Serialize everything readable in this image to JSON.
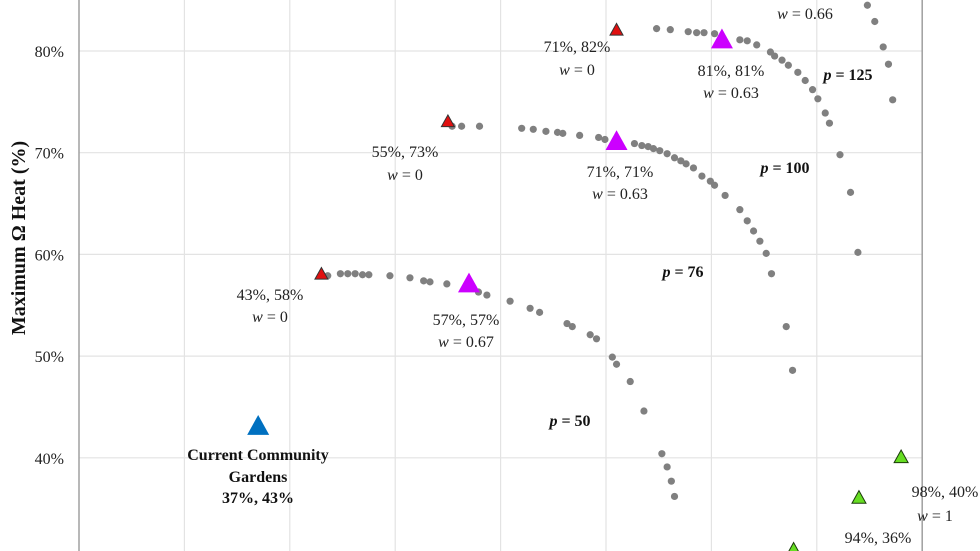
{
  "chart_data": {
    "type": "scatter",
    "title": "",
    "xlabel": "",
    "ylabel": "Maximum Ω Heat (%)",
    "xlim": [
      20,
      100
    ],
    "ylim": [
      30.9,
      85
    ],
    "grid": true,
    "y_ticks": [
      "40%",
      "50%",
      "60%",
      "70%",
      "80%"
    ],
    "y_tick_values": [
      40,
      50,
      60,
      70,
      80
    ],
    "x_grid_values": [
      30,
      40,
      50,
      60,
      70,
      80,
      90
    ],
    "colors": {
      "dots": "#808080",
      "w0": "#e01010",
      "wmid": "#cc00ff",
      "w1": "#66dd22",
      "current": "#0070c0",
      "grid": "#e3e3e3",
      "axis": "#a0a0a0"
    },
    "curves": [
      {
        "label": "p = 50",
        "points": [
          [
            43.6,
            57.9
          ],
          [
            44.8,
            58.1
          ],
          [
            45.5,
            58.1
          ],
          [
            46.2,
            58.1
          ],
          [
            46.9,
            58.0
          ],
          [
            47.5,
            58.0
          ],
          [
            49.5,
            57.9
          ],
          [
            51.4,
            57.7
          ],
          [
            52.7,
            57.4
          ],
          [
            53.3,
            57.3
          ],
          [
            54.9,
            57.1
          ],
          [
            57.9,
            56.3
          ],
          [
            58.7,
            56.0
          ],
          [
            60.9,
            55.4
          ],
          [
            62.8,
            54.7
          ],
          [
            63.7,
            54.3
          ],
          [
            66.3,
            53.2
          ],
          [
            66.8,
            52.9
          ],
          [
            68.5,
            52.1
          ],
          [
            69.1,
            51.7
          ],
          [
            70.6,
            49.9
          ],
          [
            71.0,
            49.2
          ],
          [
            72.3,
            47.5
          ],
          [
            73.6,
            44.6
          ],
          [
            75.3,
            40.4
          ],
          [
            75.8,
            39.1
          ],
          [
            76.2,
            37.7
          ],
          [
            76.5,
            36.2
          ]
        ]
      },
      {
        "label": "p = 76",
        "points": [
          [
            55.4,
            72.6
          ],
          [
            56.3,
            72.6
          ],
          [
            58.0,
            72.6
          ],
          [
            62.0,
            72.4
          ],
          [
            63.1,
            72.3
          ],
          [
            64.3,
            72.1
          ],
          [
            65.4,
            72.0
          ],
          [
            65.9,
            71.9
          ],
          [
            67.5,
            71.7
          ],
          [
            69.3,
            71.5
          ],
          [
            69.9,
            71.3
          ],
          [
            72.7,
            70.9
          ],
          [
            73.4,
            70.7
          ],
          [
            74.0,
            70.6
          ],
          [
            74.5,
            70.4
          ],
          [
            75.1,
            70.2
          ],
          [
            75.8,
            69.9
          ],
          [
            76.5,
            69.5
          ],
          [
            77.1,
            69.2
          ],
          [
            77.6,
            68.9
          ],
          [
            78.3,
            68.5
          ],
          [
            79.1,
            67.7
          ],
          [
            79.9,
            67.2
          ],
          [
            80.3,
            66.8
          ],
          [
            81.3,
            65.8
          ],
          [
            82.7,
            64.4
          ],
          [
            83.4,
            63.3
          ],
          [
            84.0,
            62.3
          ],
          [
            84.6,
            61.3
          ],
          [
            85.2,
            60.1
          ],
          [
            85.7,
            58.1
          ],
          [
            87.1,
            52.9
          ],
          [
            87.7,
            48.6
          ]
        ]
      },
      {
        "label": "p = 100",
        "points": [
          [
            74.8,
            82.2
          ],
          [
            76.1,
            82.1
          ],
          [
            77.8,
            81.9
          ],
          [
            78.6,
            81.8
          ],
          [
            79.3,
            81.8
          ],
          [
            80.3,
            81.7
          ],
          [
            82.7,
            81.1
          ],
          [
            83.4,
            81.0
          ],
          [
            84.3,
            80.6
          ],
          [
            85.6,
            79.9
          ],
          [
            86.0,
            79.5
          ],
          [
            86.7,
            79.1
          ],
          [
            87.3,
            78.6
          ],
          [
            88.2,
            77.9
          ],
          [
            88.9,
            77.1
          ],
          [
            89.6,
            76.2
          ],
          [
            90.1,
            75.3
          ],
          [
            90.8,
            73.9
          ],
          [
            91.2,
            72.9
          ],
          [
            92.2,
            69.8
          ],
          [
            93.2,
            66.1
          ],
          [
            93.9,
            60.2
          ]
        ]
      },
      {
        "label": "p = 125",
        "points": [
          [
            94.8,
            84.5
          ],
          [
            95.5,
            82.9
          ],
          [
            96.3,
            80.4
          ],
          [
            96.8,
            78.7
          ],
          [
            97.2,
            75.2
          ]
        ]
      }
    ],
    "markers": [
      {
        "kind": "w0",
        "x": 43,
        "y": 58,
        "lines": [
          "43%, 58%",
          "w = 0"
        ]
      },
      {
        "kind": "w0",
        "x": 55,
        "y": 73,
        "lines": [
          "55%, 73%",
          "w = 0"
        ]
      },
      {
        "kind": "w0",
        "x": 71,
        "y": 82,
        "lines": [
          "71%, 82%",
          "w = 0"
        ]
      },
      {
        "kind": "wmid",
        "x": 57,
        "y": 57,
        "lines": [
          "57%, 57%",
          "w = 0.67"
        ]
      },
      {
        "kind": "wmid",
        "x": 71,
        "y": 71,
        "lines": [
          "71%, 71%",
          "w = 0.63"
        ]
      },
      {
        "kind": "wmid",
        "x": 81,
        "y": 81,
        "lines": [
          "81%, 81%",
          "w = 0.63"
        ]
      },
      {
        "kind": "w1",
        "x": 98,
        "y": 40,
        "lines": [
          "98%, 40%",
          "w = 1"
        ]
      },
      {
        "kind": "w1",
        "x": 94,
        "y": 36,
        "lines": [
          "94%, 36%"
        ]
      },
      {
        "kind": "w1",
        "x": 87.8,
        "y": 30.9,
        "lines": []
      },
      {
        "kind": "current",
        "x": 37,
        "y": 43,
        "lines": [
          "Current Community",
          "Gardens",
          "37%, 43%"
        ]
      }
    ],
    "extra_labels": [
      "w = 0.66"
    ]
  }
}
